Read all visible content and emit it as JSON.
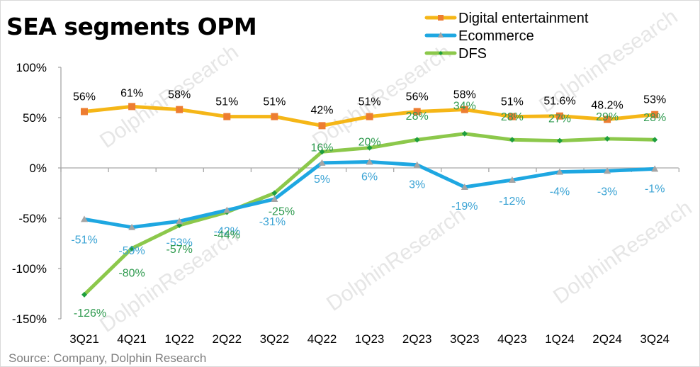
{
  "title": "SEA segments OPM",
  "source": "Source: Company, Dolphin Research",
  "watermark": "DolphinResearch",
  "chart_data": {
    "type": "line",
    "title": "SEA segments OPM",
    "xlabel": "",
    "ylabel": "",
    "categories": [
      "3Q21",
      "4Q21",
      "1Q22",
      "2Q22",
      "3Q22",
      "4Q22",
      "1Q23",
      "2Q23",
      "3Q23",
      "4Q23",
      "1Q24",
      "2Q24",
      "3Q24"
    ],
    "ylim": [
      -150,
      100
    ],
    "yticks": [
      100,
      50,
      0,
      -50,
      -100,
      -150
    ],
    "ytick_labels": [
      "100%",
      "50%",
      "0%",
      "-50%",
      "-100%",
      "-150%"
    ],
    "grid": false,
    "legend_position": "top-right",
    "series": [
      {
        "name": "Digital entertainment",
        "color": "#f5b617",
        "marker": "square",
        "marker_color": "#ed7d31",
        "label_color": "#000000",
        "values": [
          56,
          61,
          58,
          51,
          51,
          42,
          51,
          56,
          58,
          51,
          51.6,
          48.2,
          53
        ],
        "labels": [
          "56%",
          "61%",
          "58%",
          "51%",
          "51%",
          "42%",
          "51%",
          "56%",
          "58%",
          "51%",
          "51.6%",
          "48.2%",
          "53%"
        ]
      },
      {
        "name": "Ecommerce",
        "color": "#1ea7e1",
        "marker": "triangle",
        "marker_color": "#a5a5a5",
        "label_color": "#3aa3d4",
        "values": [
          -51,
          -59,
          -53,
          -42,
          -31,
          5,
          6,
          3,
          -19,
          -12,
          -4,
          -3,
          -1
        ],
        "labels": [
          "-51%",
          "-59%",
          "-53%",
          "-42%",
          "-31%",
          "5%",
          "6%",
          "3%",
          "-19%",
          "-12%",
          "-4%",
          "-3%",
          "-1%"
        ]
      },
      {
        "name": "DFS",
        "color": "#8cc84b",
        "marker": "diamond",
        "marker_color": "#1e9e3e",
        "label_color": "#2e9a4e",
        "values": [
          -126,
          -80,
          -57,
          -44,
          -25,
          16,
          20,
          28,
          34,
          28,
          27,
          29,
          28
        ],
        "labels": [
          "-126%",
          "-80%",
          "-57%",
          "-44%",
          "-25%",
          "16%",
          "20%",
          "28%",
          "34%",
          "28%",
          "27%",
          "29%",
          "28%"
        ]
      }
    ]
  }
}
